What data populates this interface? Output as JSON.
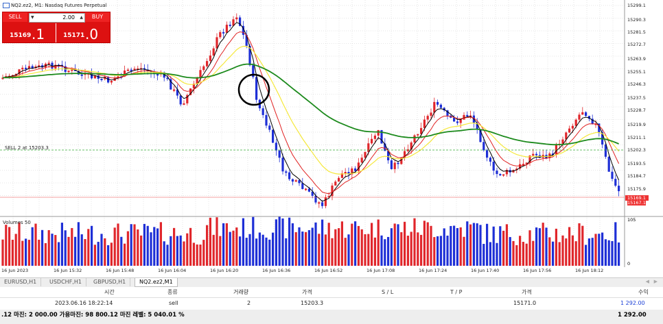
{
  "symbol_title": "NQ2.ez2, M1:  Nasdaq Futures Perpetual",
  "one_click": {
    "sell_label": "SELL",
    "buy_label": "BUY",
    "lot": "2.00",
    "sell_small": "15169",
    "sell_big": ".1",
    "buy_small": "15171",
    "buy_big": ".0"
  },
  "sell_line_label": "SELL 2 at 15203.3",
  "volume_label": "Volumes 50",
  "price_axis": [
    "15299.1",
    "15290.3",
    "15281.5",
    "15272.7",
    "15263.9",
    "15255.1",
    "15246.3",
    "15237.5",
    "15228.7",
    "15219.9",
    "15211.1",
    "15202.3",
    "15193.5",
    "15184.7",
    "15175.9",
    "15169.1",
    "15167.1"
  ],
  "volume_axis": [
    "105",
    "0"
  ],
  "time_axis": [
    "16 Jun 2023",
    "16 Jun 15:32",
    "16 Jun 15:48",
    "16 Jun 16:04",
    "16 Jun 16:20",
    "16 Jun 16:36",
    "16 Jun 16:52",
    "16 Jun 17:08",
    "16 Jun 17:24",
    "16 Jun 17:40",
    "16 Jun 17:56",
    "16 Jun 18:12"
  ],
  "tabs": [
    "EURUSD,H1",
    "USDCHF,H1",
    "GBPUSD,H1",
    "NQ2.ez2,M1"
  ],
  "active_tab": 3,
  "table": {
    "headers": [
      "시간",
      "종류",
      "거래량",
      "가격",
      "S / L",
      "T / P",
      "가격",
      "수익"
    ],
    "row": [
      "2023.06.16 18:22:14",
      "sell",
      "2",
      "15203.3",
      "",
      "",
      "15171.0",
      "1 292.00"
    ]
  },
  "summary_left": ".12  마진: 2 000.00  가용마진: 98 800.12  마진 레벨: 5 040.01 %",
  "summary_right": "1 292.00",
  "colors": {
    "bull": "#e0262b",
    "bear": "#1e2fd6",
    "ema_fast": "#000000",
    "ema_mid": "#e02020",
    "ema_slow": "#f5e83a",
    "sma_long": "#1c8a1c"
  }
}
